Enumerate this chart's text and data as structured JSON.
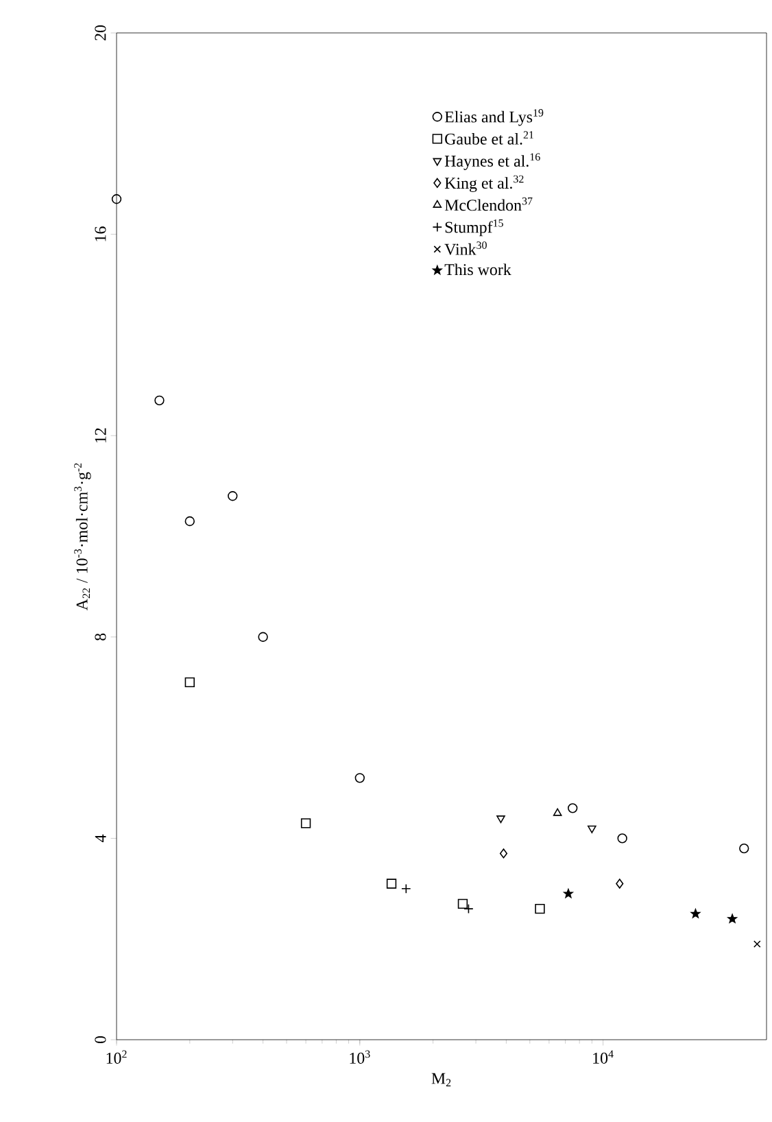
{
  "chart_data": {
    "type": "scatter",
    "xlabel": "M$_{2}$",
    "ylabel": "A$_{22}$ / 10$^{-3}$·mol·cm$^{3}$·g$^{-2}$",
    "log": "x",
    "xlim": [
      100,
      47000
    ],
    "ylim": [
      0,
      20
    ],
    "xticks": [
      {
        "value": 100,
        "label": "10$^{2}$"
      },
      {
        "value": 1000,
        "label": "10$^{3}$"
      },
      {
        "value": 10000,
        "label": "10$^{4}$"
      }
    ],
    "yticks": [
      0,
      4,
      8,
      12,
      16,
      20
    ],
    "grid": false,
    "legend": "top right",
    "series": [
      {
        "name": "Elias and Lys$^{19}$",
        "color": "#000000",
        "marker": "circle",
        "x": [
          100,
          150,
          200,
          300,
          400,
          1000,
          7500,
          12000,
          38000
        ],
        "values": [
          16.7,
          12.7,
          10.3,
          10.8,
          8.0,
          5.2,
          4.6,
          4.0,
          3.8
        ]
      },
      {
        "name": "Gaube et al.$^{21}$",
        "color": "#000000",
        "marker": "square",
        "x": [
          200,
          600,
          1350,
          2650,
          5500
        ],
        "values": [
          7.1,
          4.3,
          3.1,
          2.7,
          2.6
        ]
      },
      {
        "name": "Haynes et al.$^{16}$",
        "color": "#000000",
        "marker": "triangle down",
        "x": [
          3800,
          9000
        ],
        "values": [
          4.4,
          4.2
        ]
      },
      {
        "name": "King et al.$^{32}$",
        "color": "#000000",
        "marker": "diamond",
        "x": [
          3900,
          11700
        ],
        "values": [
          3.7,
          3.1
        ]
      },
      {
        "name": "McClendon$^{37}$",
        "color": "#000000",
        "marker": "triangle",
        "x": [
          6500
        ],
        "values": [
          4.5
        ]
      },
      {
        "name": "Stumpf$^{15}$",
        "color": "#000000",
        "marker": "plus",
        "x": [
          1550,
          2800
        ],
        "values": [
          3.0,
          2.6
        ]
      },
      {
        "name": "Vink$^{30}$",
        "color": "#000000",
        "marker": "cross",
        "x": [
          43000
        ],
        "values": [
          1.9
        ]
      },
      {
        "name": "This work",
        "color": "#000000",
        "marker": "star",
        "x": [
          7200,
          24000,
          34000
        ],
        "values": [
          2.9,
          2.5,
          2.4
        ]
      }
    ]
  }
}
